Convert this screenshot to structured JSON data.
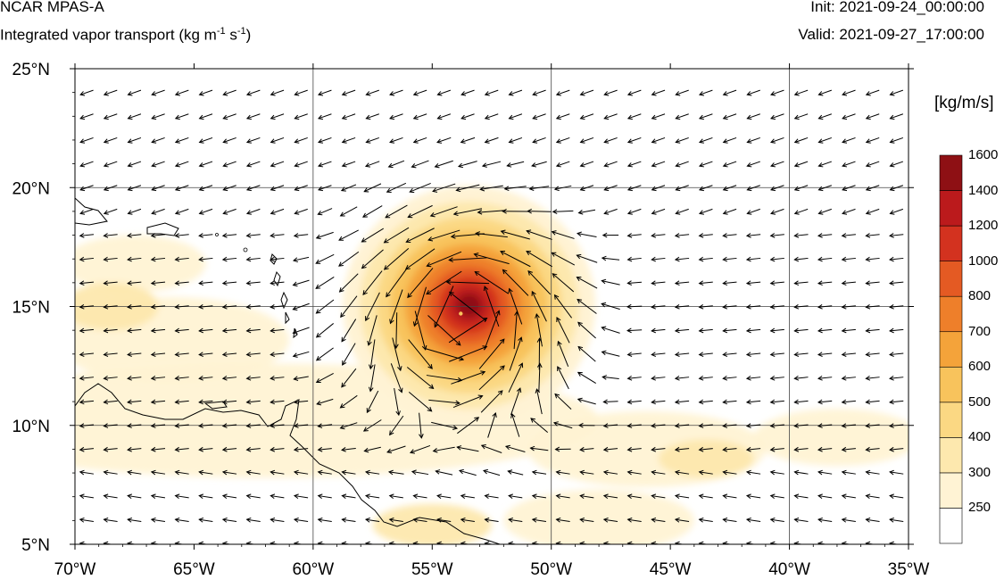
{
  "header": {
    "title": "NCAR MPAS-A",
    "subtitle": "Integrated vapor transport (kg m",
    "subtitle_exp1": "-1",
    "subtitle_mid": " s",
    "subtitle_exp2": "-1",
    "subtitle_end": ")",
    "init": "Init: 2021-09-24_00:00:00",
    "valid": "Valid: 2021-09-27_17:00:00"
  },
  "map": {
    "lon_range": [
      -70,
      -35
    ],
    "lat_range": [
      5,
      25
    ],
    "lon_ticks": [
      {
        "value": -70,
        "label": "70°W"
      },
      {
        "value": -65,
        "label": "65°W"
      },
      {
        "value": -60,
        "label": "60°W"
      },
      {
        "value": -55,
        "label": "55°W"
      },
      {
        "value": -50,
        "label": "50°W"
      },
      {
        "value": -45,
        "label": "45°W"
      },
      {
        "value": -40,
        "label": "40°W"
      },
      {
        "value": -35,
        "label": "35°W"
      }
    ],
    "lat_ticks": [
      {
        "value": 25,
        "label": "25°N"
      },
      {
        "value": 20,
        "label": "20°N"
      },
      {
        "value": 15,
        "label": "15°N"
      },
      {
        "value": 10,
        "label": "10°N"
      },
      {
        "value": 5,
        "label": "5°N"
      }
    ],
    "gridlines_lon": [
      -60,
      -50,
      -40
    ],
    "gridlines_lat": [
      20,
      15,
      10
    ],
    "storm_center": {
      "lon": -53.8,
      "lat": 14.7
    }
  },
  "colorbar": {
    "unit": "[kg/m/s]",
    "levels": [
      "250",
      "300",
      "400",
      "500",
      "600",
      "700",
      "800",
      "1000",
      "1200",
      "1400",
      "1600"
    ],
    "colors": [
      "#ffffff",
      "#fff3d4",
      "#fde8ae",
      "#fbd883",
      "#f8c35c",
      "#f4a33a",
      "#ee7f2a",
      "#e45a23",
      "#d3321f",
      "#bb1a1c",
      "#8e1014"
    ]
  }
}
